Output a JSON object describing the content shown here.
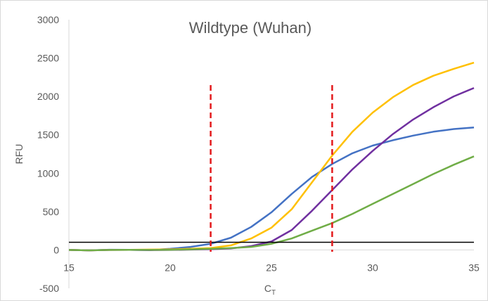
{
  "chart_data": {
    "type": "line",
    "title": "Wildtype (Wuhan)",
    "xlabel": "C",
    "xlabel_sub": "T",
    "ylabel": "RFU",
    "xlim": [
      15,
      35
    ],
    "ylim": [
      -500,
      3000
    ],
    "x_ticks": [
      15,
      20,
      25,
      30,
      35
    ],
    "y_ticks": [
      -500,
      0,
      500,
      1000,
      1500,
      2000,
      2500,
      3000
    ],
    "grid": false,
    "legend": "none",
    "threshold": {
      "y": 100,
      "color": "#000000"
    },
    "vlines": [
      {
        "x": 22,
        "color": "#e31a1c",
        "style": "dashed"
      },
      {
        "x": 28,
        "color": "#e31a1c",
        "style": "dashed"
      }
    ],
    "x": [
      15,
      16,
      17,
      18,
      19,
      20,
      21,
      22,
      23,
      24,
      25,
      26,
      27,
      28,
      29,
      30,
      31,
      32,
      33,
      34,
      35
    ],
    "series": [
      {
        "color": "#4472c4",
        "values": [
          0,
          -5,
          3,
          2,
          -2,
          15,
          40,
          80,
          160,
          300,
          490,
          730,
          950,
          1120,
          1260,
          1360,
          1430,
          1490,
          1540,
          1575,
          1595
        ]
      },
      {
        "color": "#ffc000",
        "values": [
          0,
          -5,
          0,
          2,
          5,
          8,
          15,
          25,
          60,
          150,
          290,
          530,
          880,
          1230,
          1540,
          1790,
          1990,
          2150,
          2270,
          2360,
          2440
        ]
      },
      {
        "color": "#7030a0",
        "values": [
          0,
          -5,
          0,
          2,
          -2,
          0,
          5,
          10,
          20,
          50,
          110,
          260,
          510,
          780,
          1050,
          1290,
          1510,
          1700,
          1860,
          2000,
          2110
        ]
      },
      {
        "color": "#70ad47",
        "values": [
          0,
          -5,
          0,
          2,
          0,
          2,
          8,
          15,
          25,
          40,
          80,
          150,
          250,
          350,
          470,
          600,
          730,
          860,
          990,
          1110,
          1220
        ]
      }
    ]
  }
}
